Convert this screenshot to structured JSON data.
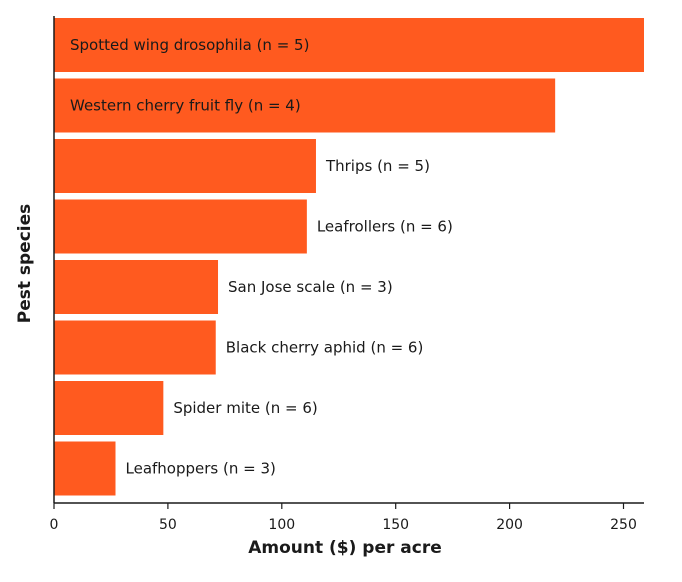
{
  "chart_data": {
    "type": "bar",
    "orientation": "horizontal",
    "categories": [
      "Spotted wing drosophila (n = 5)",
      "Western cherry fruit fly (n = 4)",
      "Thrips (n = 5)",
      "Leafrollers (n = 6)",
      "San Jose scale (n = 3)",
      "Black cherry aphid (n = 6)",
      "Spider mite (n = 6)",
      "Leafhoppers (n = 3)"
    ],
    "values": [
      259,
      220,
      115,
      111,
      72,
      71,
      48,
      27
    ],
    "xlabel": "Amount ($) per acre",
    "ylabel": "Pest species",
    "xlim": [
      0,
      259
    ],
    "xticks": [
      "0",
      "50",
      "100",
      "150",
      "200",
      "250"
    ],
    "grid": false,
    "bar_color": "#ff5a1f",
    "label_placement": "inside when bar is long, otherwise right of bar"
  }
}
